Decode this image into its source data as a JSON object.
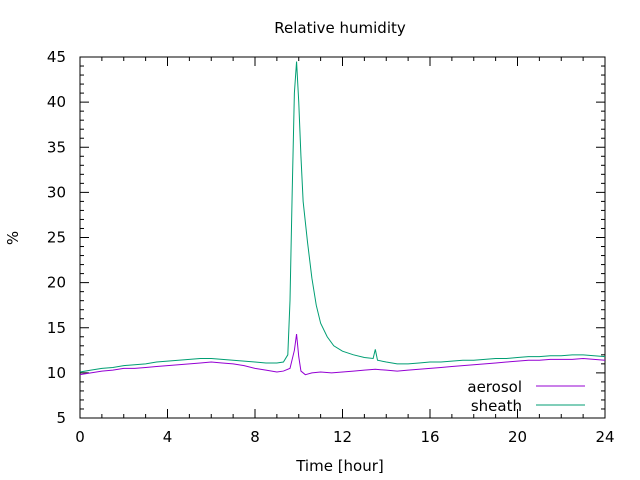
{
  "chart_data": {
    "type": "line",
    "title": "Relative humidity",
    "xlabel": "Time [hour]",
    "ylabel": "%",
    "xlim": [
      0,
      24
    ],
    "ylim": [
      5,
      45
    ],
    "xticks": [
      0,
      4,
      8,
      12,
      16,
      20,
      24
    ],
    "yticks": [
      5,
      10,
      15,
      20,
      25,
      30,
      35,
      40,
      45
    ],
    "grid": false,
    "legend_position": "bottom-right",
    "series": [
      {
        "name": "aerosol",
        "color": "#9400d3",
        "x": [
          0,
          0.5,
          1,
          1.5,
          2,
          2.5,
          3,
          3.5,
          4,
          4.5,
          5,
          5.5,
          6,
          6.5,
          7,
          7.5,
          8,
          8.5,
          9,
          9.3,
          9.6,
          9.8,
          9.9,
          10.0,
          10.1,
          10.3,
          10.6,
          11,
          11.5,
          12,
          12.5,
          13,
          13.5,
          14,
          14.5,
          15,
          15.5,
          16,
          16.5,
          17,
          17.5,
          18,
          18.5,
          19,
          19.5,
          20,
          20.5,
          21,
          21.5,
          22,
          22.5,
          23,
          23.5,
          24
        ],
        "y": [
          9.8,
          10.0,
          10.2,
          10.3,
          10.5,
          10.5,
          10.6,
          10.7,
          10.8,
          10.9,
          11.0,
          11.1,
          11.2,
          11.1,
          11.0,
          10.8,
          10.5,
          10.3,
          10.1,
          10.2,
          10.5,
          12.5,
          14.3,
          11.8,
          10.2,
          9.8,
          10.0,
          10.1,
          10.0,
          10.1,
          10.2,
          10.3,
          10.4,
          10.3,
          10.2,
          10.3,
          10.4,
          10.5,
          10.6,
          10.7,
          10.8,
          10.9,
          11.0,
          11.1,
          11.2,
          11.3,
          11.4,
          11.4,
          11.5,
          11.5,
          11.5,
          11.6,
          11.5,
          11.4
        ]
      },
      {
        "name": "sheath",
        "color": "#009e73",
        "x": [
          0,
          0.5,
          1,
          1.5,
          2,
          2.5,
          3,
          3.5,
          4,
          4.5,
          5,
          5.5,
          6,
          6.5,
          7,
          7.5,
          8,
          8.5,
          9,
          9.3,
          9.5,
          9.6,
          9.7,
          9.8,
          9.9,
          10.0,
          10.1,
          10.2,
          10.4,
          10.6,
          10.8,
          11.0,
          11.3,
          11.6,
          12.0,
          12.5,
          13.0,
          13.4,
          13.5,
          13.6,
          14,
          14.5,
          15,
          15.5,
          16,
          16.5,
          17,
          17.5,
          18,
          18.5,
          19,
          19.5,
          20,
          20.5,
          21,
          21.5,
          22,
          22.5,
          23,
          23.5,
          24
        ],
        "y": [
          10.1,
          10.3,
          10.5,
          10.6,
          10.8,
          10.9,
          11.0,
          11.2,
          11.3,
          11.4,
          11.5,
          11.6,
          11.6,
          11.5,
          11.4,
          11.3,
          11.2,
          11.1,
          11.1,
          11.2,
          12.0,
          18.0,
          30.0,
          41.0,
          44.5,
          40.0,
          34.0,
          29.0,
          24.5,
          20.5,
          17.5,
          15.5,
          14.0,
          13.0,
          12.4,
          12.0,
          11.7,
          11.6,
          12.6,
          11.4,
          11.2,
          11.0,
          11.0,
          11.1,
          11.2,
          11.2,
          11.3,
          11.4,
          11.4,
          11.5,
          11.6,
          11.6,
          11.7,
          11.8,
          11.8,
          11.9,
          11.9,
          12.0,
          12.0,
          11.9,
          11.8
        ]
      }
    ]
  }
}
